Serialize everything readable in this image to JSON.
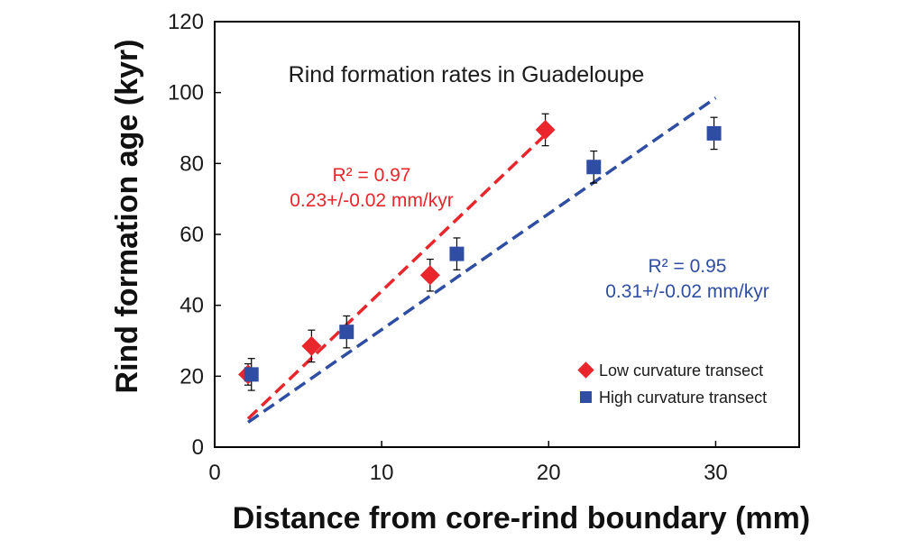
{
  "chart_data": {
    "type": "scatter",
    "title": "Rind formation rates in Guadeloupe",
    "xlabel": "Distance from core-rind boundary (mm)",
    "ylabel": "Rind formation age (kyr)",
    "xlim": [
      0,
      35
    ],
    "ylim": [
      0,
      120
    ],
    "x_ticks": [
      "0",
      "10",
      "20",
      "30"
    ],
    "y_ticks": [
      "0",
      "20",
      "40",
      "60",
      "80",
      "100",
      "120"
    ],
    "grid": false,
    "legend_position": "bottom-right",
    "series": [
      {
        "name": "Low curvature transect",
        "color": "#e8262b",
        "marker": "diamond",
        "points": [
          {
            "x": 2.0,
            "y": 20.5,
            "err": 3.0
          },
          {
            "x": 5.8,
            "y": 28.5,
            "err": 4.5
          },
          {
            "x": 12.9,
            "y": 48.5,
            "err": 4.5
          },
          {
            "x": 19.8,
            "y": 89.5,
            "err": 4.5
          }
        ],
        "fit": {
          "x": [
            2.0,
            20.0
          ],
          "y": [
            8.0,
            89.0
          ]
        },
        "annotation": {
          "r2": "R² = 0.97",
          "rate": "0.23+/-0.02 mm/kyr"
        }
      },
      {
        "name": "High curvature transect",
        "color": "#2f4ea3",
        "marker": "square",
        "points": [
          {
            "x": 2.2,
            "y": 20.5,
            "err": 4.5
          },
          {
            "x": 7.9,
            "y": 32.5,
            "err": 4.5
          },
          {
            "x": 14.5,
            "y": 54.5,
            "err": 4.5
          },
          {
            "x": 22.7,
            "y": 79.0,
            "err": 4.5
          },
          {
            "x": 29.9,
            "y": 88.5,
            "err": 4.5
          }
        ],
        "fit": {
          "x": [
            2.0,
            30.0
          ],
          "y": [
            7.0,
            98.5
          ]
        },
        "annotation": {
          "r2": "R² = 0.95",
          "rate": "0.31+/-0.02 mm/kyr"
        }
      }
    ]
  }
}
